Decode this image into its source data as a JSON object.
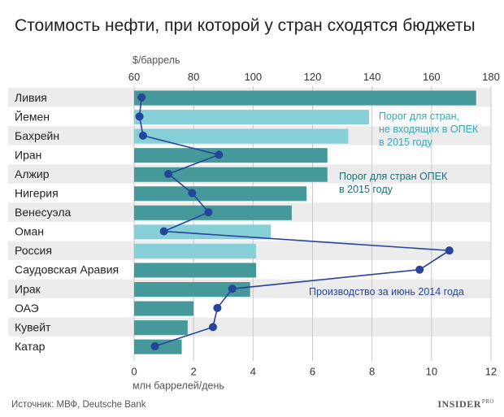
{
  "title": "Стоимость нефти, при которой у стран сходятся бюджеты",
  "source": "Источник: МВФ, Deutsche Bank",
  "brand": "INSIDER",
  "brand_suffix": "PRO",
  "colors": {
    "opec": "#46999a",
    "non_opec": "#87cfd6",
    "line": "#26449a",
    "row_bg": "#ececec",
    "grid": "#c8c8c8"
  },
  "chart_data": {
    "type": "bar",
    "orientation": "horizontal",
    "categories": [
      "Ливия",
      "Йемен",
      "Бахрейн",
      "Иран",
      "Алжир",
      "Нигерия",
      "Венесуэла",
      "Оман",
      "Россия",
      "Саудовская Аравия",
      "Ирак",
      "ОАЭ",
      "Кувейт",
      "Катар"
    ],
    "top_axis": {
      "label": "$/баррель",
      "min": 60,
      "max": 180,
      "ticks": [
        60,
        80,
        100,
        120,
        140,
        160,
        180
      ]
    },
    "bottom_axis": {
      "label": "млн баррелей/день",
      "min": 0,
      "max": 12,
      "ticks": [
        0,
        2,
        4,
        6,
        8,
        10,
        12
      ]
    },
    "series": [
      {
        "name": "Порог для стран ОПЕК в 2015 году",
        "kind": "bar",
        "axis": "top",
        "values": [
          175,
          139,
          132,
          125,
          125,
          118,
          113,
          106,
          101,
          101,
          99,
          80,
          78,
          76
        ],
        "opec": [
          true,
          false,
          false,
          true,
          true,
          true,
          true,
          false,
          false,
          true,
          true,
          true,
          true,
          true
        ]
      },
      {
        "name": "Производство за июнь 2014 года",
        "kind": "line",
        "axis": "bottom",
        "values": [
          0.25,
          0.18,
          0.3,
          2.85,
          1.15,
          1.95,
          2.5,
          1.0,
          10.6,
          9.6,
          3.3,
          2.8,
          2.65,
          0.7
        ]
      }
    ],
    "annotations": {
      "non_opec": [
        "Порог для стран,",
        "не входящих в ОПЕК",
        "в 2015 году"
      ],
      "opec": [
        "Порог для стран ОПЕК",
        "в 2015 году"
      ],
      "production": [
        "Производство за июнь 2014 года"
      ]
    }
  }
}
